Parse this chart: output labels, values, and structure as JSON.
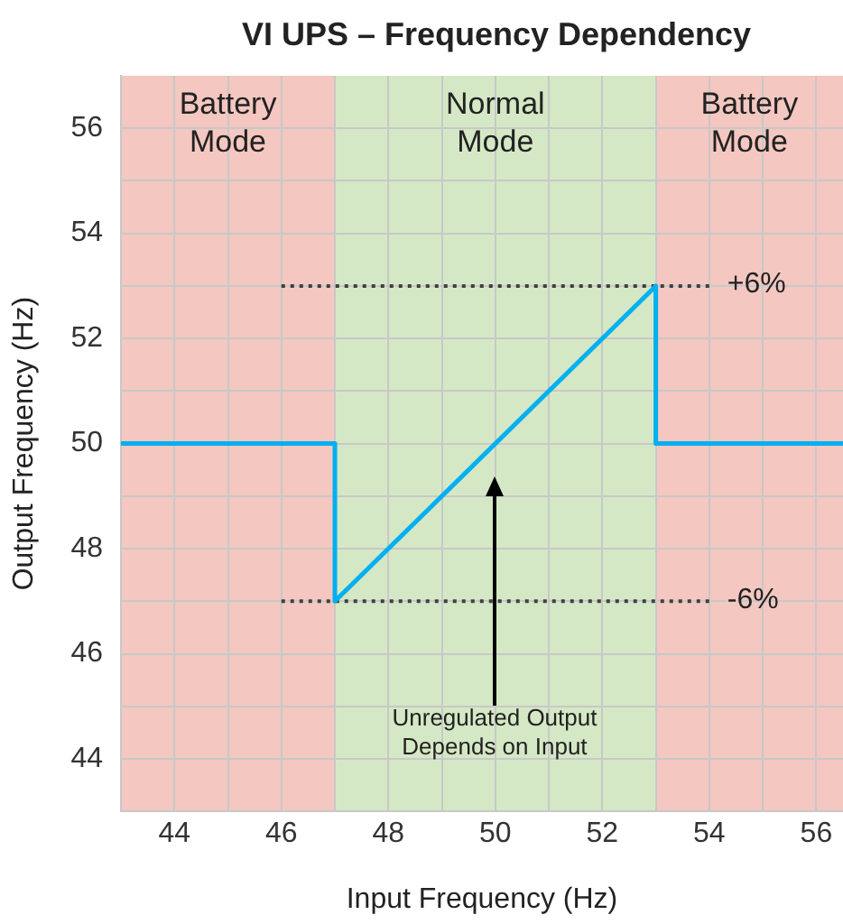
{
  "chart_data": {
    "type": "line",
    "title": "VI UPS – Frequency Dependency",
    "xlabel": "Input Frequency (Hz)",
    "ylabel": "Output Frequency (Hz)",
    "xlim": [
      43,
      56.5
    ],
    "xticks": [
      44,
      {
        "value": 45,
        "label": null
      },
      46,
      {
        "value": 47,
        "label": null
      },
      48,
      {
        "value": 49,
        "label": null
      },
      50,
      {
        "value": 51,
        "label": null
      },
      52,
      {
        "value": 53,
        "label": null
      },
      54,
      {
        "value": 55,
        "label": null
      },
      56
    ],
    "ylim": [
      43,
      57
    ],
    "yticks": [
      44,
      {
        "value": 45,
        "label": null
      },
      46,
      {
        "value": 47,
        "label": null
      },
      48,
      {
        "value": 49,
        "label": null
      },
      50,
      {
        "value": 51,
        "label": null
      },
      52,
      {
        "value": 53,
        "label": null
      },
      54,
      {
        "value": 55,
        "label": null
      },
      56
    ],
    "grid": true,
    "legend": false,
    "marker": "none",
    "series": [
      {
        "color": "#00b0f0",
        "x": [
          43,
          47,
          47,
          53,
          53,
          56.5
        ],
        "values": [
          50,
          50,
          47,
          53,
          50,
          50
        ]
      },
      {
        "name": "+6%",
        "color": "#404040",
        "line_style": "dotted",
        "x": [
          46,
          54
        ],
        "values": [
          53,
          53
        ]
      },
      {
        "name": "-6%",
        "color": "#404040",
        "line_style": "dotted",
        "x": [
          46,
          54
        ],
        "values": [
          47,
          47
        ]
      }
    ],
    "bands": [
      {
        "axis": "x",
        "from": 43,
        "to": 47,
        "label": "Battery Mode",
        "color": "#f4c7c0"
      },
      {
        "axis": "x",
        "from": 47,
        "to": 53,
        "label": "Normal Mode",
        "color": "#d5e8c5"
      },
      {
        "axis": "x",
        "from": 53,
        "to": 56.5,
        "label": "Battery Mode",
        "color": "#f4c7c0"
      }
    ],
    "annotations": [
      "Unregulated Output Depends on Input"
    ]
  }
}
